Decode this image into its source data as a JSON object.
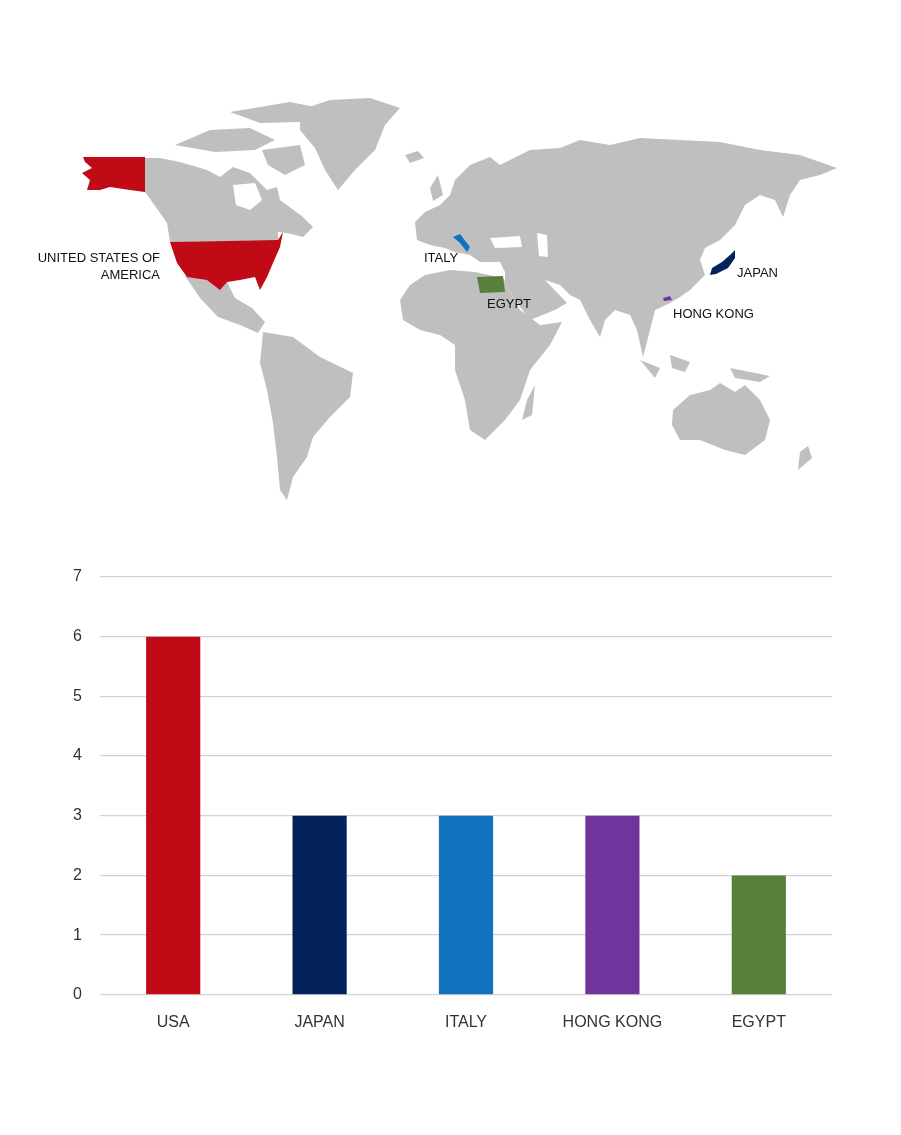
{
  "chart_data": [
    {
      "type": "other",
      "categories": [
        "UNITED STATES OF AMERICA",
        "ITALY",
        "EGYPT",
        "JAPAN",
        "HONG KONG"
      ],
      "colors": [
        "#c00a16",
        "#1172bd",
        "#58803a",
        "#03215b",
        "#6f359c"
      ]
    },
    {
      "type": "bar",
      "categories": [
        "USA",
        "JAPAN",
        "ITALY",
        "HONG KONG",
        "EGYPT"
      ],
      "values": [
        6,
        3,
        3,
        3,
        2
      ],
      "colors": [
        "#c00a16",
        "#03215b",
        "#1172bd",
        "#6f359c",
        "#58803a"
      ],
      "ylim": [
        0,
        7
      ],
      "yticks": [
        0,
        1,
        2,
        3,
        4,
        5,
        6,
        7
      ],
      "grid": "y"
    }
  ]
}
